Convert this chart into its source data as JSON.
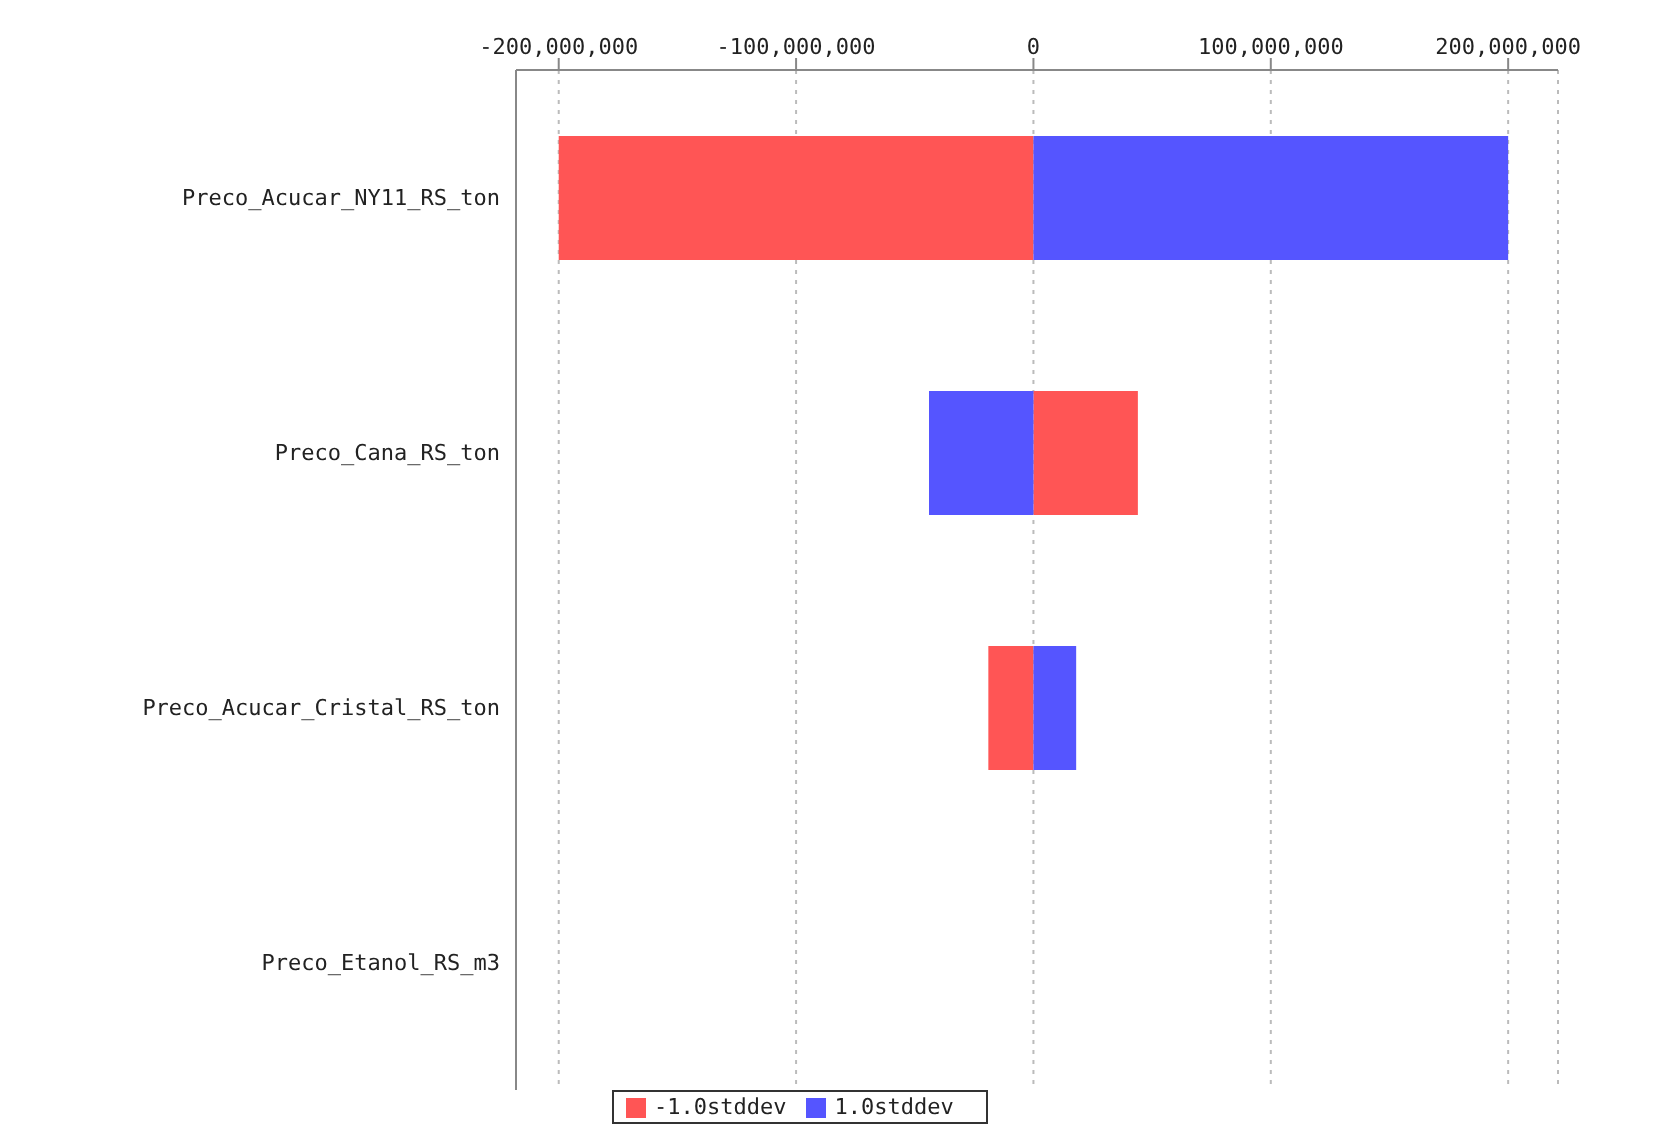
{
  "chart_data": {
    "type": "bar",
    "orientation": "horizontal",
    "stacked": true,
    "categories": [
      "Preco_Acucar_NY11_RS_ton",
      "Preco_Cana_RS_ton",
      "Preco_Acucar_Cristal_RS_ton",
      "Preco_Etanol_RS_m3"
    ],
    "series": [
      {
        "name": "-1.0stddev",
        "color": "#ff5555",
        "values": [
          -200000000,
          44000000,
          -19000000,
          0
        ]
      },
      {
        "name": "1.0stddev",
        "color": "#5555ff",
        "values": [
          200000000,
          -44000000,
          18000000,
          0
        ]
      }
    ],
    "xlim": [
      -218000000,
      221000000
    ],
    "xticks": [
      {
        "value": -200000000,
        "label": "-200,000,000"
      },
      {
        "value": -100000000,
        "label": "-100,000,000"
      },
      0,
      {
        "value": 100000000,
        "label": "100,000,000"
      },
      {
        "value": 200000000,
        "label": "200,000,000"
      }
    ],
    "grid": "x",
    "legend": "bottom"
  }
}
